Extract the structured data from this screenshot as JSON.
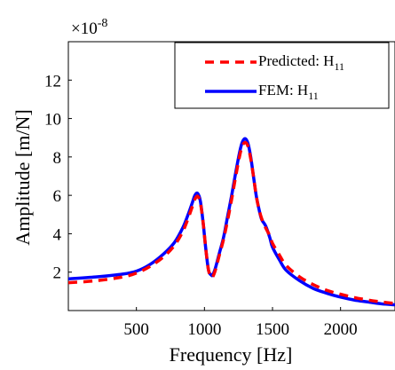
{
  "chart_data": {
    "type": "line",
    "xlabel": "Frequency [Hz]",
    "ylabel": "Amplitude [m/N]",
    "exponent_prefix": "×10",
    "exponent_power": "-8",
    "xlim": [
      0,
      2400
    ],
    "ylim": [
      0,
      14
    ],
    "xticks": [
      500,
      1000,
      1500,
      2000
    ],
    "yticks": [
      2,
      4,
      6,
      8,
      10,
      12
    ],
    "xtick_labels": [
      "500",
      "1000",
      "1500",
      "2000"
    ],
    "ytick_labels": [
      "2",
      "4",
      "6",
      "8",
      "10",
      "12"
    ],
    "legend_position": "top-right",
    "series": [
      {
        "name": "Predicted: H",
        "name_sub": "11",
        "color": "#ff0000",
        "style": "dashed",
        "x": [
          0,
          200,
          400,
          500,
          600,
          700,
          780,
          840,
          880,
          910,
          930,
          950,
          970,
          990,
          1010,
          1030,
          1050,
          1060,
          1080,
          1110,
          1140,
          1170,
          1200,
          1230,
          1260,
          1280,
          1300,
          1320,
          1340,
          1360,
          1380,
          1400,
          1420,
          1450,
          1480,
          1500,
          1550,
          1600,
          1700,
          1800,
          1900,
          2000,
          2100,
          2200,
          2300,
          2400
        ],
        "y": [
          1.45,
          1.55,
          1.75,
          1.95,
          2.3,
          2.8,
          3.4,
          4.1,
          4.8,
          5.4,
          5.8,
          5.95,
          5.6,
          4.6,
          3.2,
          2.1,
          1.75,
          1.75,
          2.1,
          2.9,
          3.7,
          4.7,
          5.8,
          7.0,
          8.1,
          8.6,
          8.75,
          8.55,
          7.9,
          7.0,
          6.0,
          5.3,
          4.8,
          4.3,
          3.9,
          3.5,
          2.9,
          2.35,
          1.75,
          1.35,
          1.05,
          0.85,
          0.68,
          0.55,
          0.45,
          0.37
        ]
      },
      {
        "name": "FEM: H",
        "name_sub": "11",
        "color": "#0000ff",
        "style": "solid",
        "x": [
          0,
          200,
          400,
          500,
          600,
          700,
          780,
          840,
          880,
          910,
          930,
          950,
          970,
          990,
          1010,
          1030,
          1050,
          1060,
          1080,
          1110,
          1140,
          1170,
          1200,
          1230,
          1260,
          1280,
          1300,
          1320,
          1340,
          1360,
          1380,
          1400,
          1420,
          1450,
          1480,
          1500,
          1550,
          1600,
          1700,
          1800,
          1900,
          2000,
          2100,
          2200,
          2300,
          2400
        ],
        "y": [
          1.65,
          1.75,
          1.9,
          2.05,
          2.4,
          2.95,
          3.55,
          4.3,
          5.0,
          5.6,
          6.0,
          6.1,
          5.7,
          4.6,
          3.2,
          2.1,
          1.85,
          1.85,
          2.2,
          3.0,
          3.8,
          4.9,
          6.0,
          7.2,
          8.3,
          8.8,
          8.95,
          8.7,
          8.0,
          7.0,
          6.0,
          5.3,
          4.75,
          4.4,
          3.8,
          3.3,
          2.65,
          2.1,
          1.55,
          1.15,
          0.9,
          0.7,
          0.55,
          0.45,
          0.35,
          0.3
        ]
      }
    ]
  }
}
